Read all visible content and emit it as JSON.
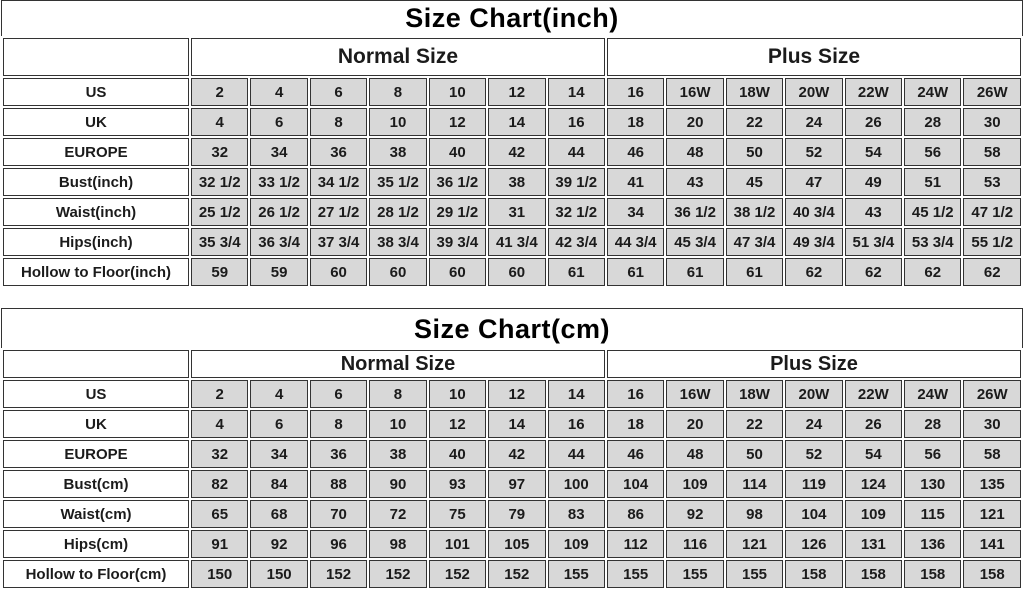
{
  "colors": {
    "page_bg": "#ffffff",
    "cell_bg": "#d8d8d8",
    "border": "#333333",
    "text": "#111111"
  },
  "chart_data": [
    {
      "type": "table",
      "title": "Size Chart(inch)",
      "column_groups": [
        {
          "label": "Normal Size",
          "span": 7
        },
        {
          "label": "Plus Size",
          "span": 7
        }
      ],
      "rows": [
        {
          "label": "US",
          "values": [
            "2",
            "4",
            "6",
            "8",
            "10",
            "12",
            "14",
            "16",
            "16W",
            "18W",
            "20W",
            "22W",
            "24W",
            "26W"
          ]
        },
        {
          "label": "UK",
          "values": [
            "4",
            "6",
            "8",
            "10",
            "12",
            "14",
            "16",
            "18",
            "20",
            "22",
            "24",
            "26",
            "28",
            "30"
          ]
        },
        {
          "label": "EUROPE",
          "values": [
            "32",
            "34",
            "36",
            "38",
            "40",
            "42",
            "44",
            "46",
            "48",
            "50",
            "52",
            "54",
            "56",
            "58"
          ]
        },
        {
          "label": "Bust(inch)",
          "values": [
            "32 1/2",
            "33 1/2",
            "34 1/2",
            "35 1/2",
            "36 1/2",
            "38",
            "39 1/2",
            "41",
            "43",
            "45",
            "47",
            "49",
            "51",
            "53"
          ]
        },
        {
          "label": "Waist(inch)",
          "values": [
            "25 1/2",
            "26 1/2",
            "27 1/2",
            "28 1/2",
            "29 1/2",
            "31",
            "32 1/2",
            "34",
            "36 1/2",
            "38 1/2",
            "40 3/4",
            "43",
            "45 1/2",
            "47 1/2"
          ]
        },
        {
          "label": "Hips(inch)",
          "values": [
            "35 3/4",
            "36 3/4",
            "37 3/4",
            "38 3/4",
            "39 3/4",
            "41 3/4",
            "42 3/4",
            "44 3/4",
            "45 3/4",
            "47 3/4",
            "49 3/4",
            "51 3/4",
            "53 3/4",
            "55 1/2"
          ]
        },
        {
          "label": "Hollow to Floor(inch)",
          "values": [
            "59",
            "59",
            "60",
            "60",
            "60",
            "60",
            "61",
            "61",
            "61",
            "61",
            "62",
            "62",
            "62",
            "62"
          ]
        }
      ]
    },
    {
      "type": "table",
      "title": "Size Chart(cm)",
      "column_groups": [
        {
          "label": "Normal Size",
          "span": 7
        },
        {
          "label": "Plus Size",
          "span": 7
        }
      ],
      "rows": [
        {
          "label": "US",
          "values": [
            "2",
            "4",
            "6",
            "8",
            "10",
            "12",
            "14",
            "16",
            "16W",
            "18W",
            "20W",
            "22W",
            "24W",
            "26W"
          ]
        },
        {
          "label": "UK",
          "values": [
            "4",
            "6",
            "8",
            "10",
            "12",
            "14",
            "16",
            "18",
            "20",
            "22",
            "24",
            "26",
            "28",
            "30"
          ]
        },
        {
          "label": "EUROPE",
          "values": [
            "32",
            "34",
            "36",
            "38",
            "40",
            "42",
            "44",
            "46",
            "48",
            "50",
            "52",
            "54",
            "56",
            "58"
          ]
        },
        {
          "label": "Bust(cm)",
          "values": [
            "82",
            "84",
            "88",
            "90",
            "93",
            "97",
            "100",
            "104",
            "109",
            "114",
            "119",
            "124",
            "130",
            "135"
          ]
        },
        {
          "label": "Waist(cm)",
          "values": [
            "65",
            "68",
            "70",
            "72",
            "75",
            "79",
            "83",
            "86",
            "92",
            "98",
            "104",
            "109",
            "115",
            "121"
          ]
        },
        {
          "label": "Hips(cm)",
          "values": [
            "91",
            "92",
            "96",
            "98",
            "101",
            "105",
            "109",
            "112",
            "116",
            "121",
            "126",
            "131",
            "136",
            "141"
          ]
        },
        {
          "label": "Hollow to Floor(cm)",
          "values": [
            "150",
            "150",
            "152",
            "152",
            "152",
            "152",
            "155",
            "155",
            "155",
            "155",
            "158",
            "158",
            "158",
            "158"
          ]
        }
      ]
    }
  ]
}
